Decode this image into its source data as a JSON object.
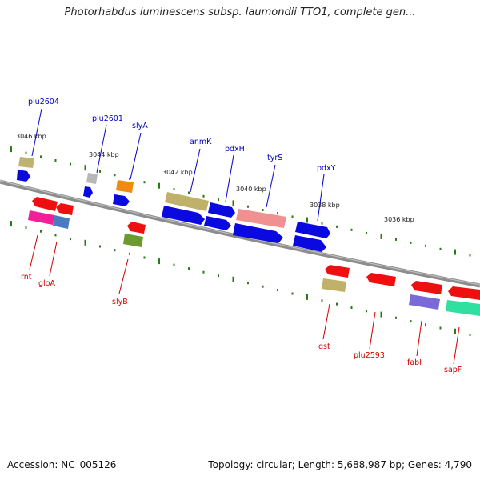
{
  "title": "Photorhabdus luminescens subsp. laumondii TTO1, complete gen...",
  "accession": "Accession: NC_005126",
  "genome_info": "Topology: circular; Length: 5,688,987 bp; Genes: 4,790",
  "colors": {
    "backbone": "#8c8c8c",
    "forward_label": "#0000c8",
    "reverse_label": "#d00000",
    "tick_mark": "#2a7a1a"
  },
  "scale_labels": [
    "3046 kbp",
    "3044 kbp",
    "3042 kbp",
    "3040 kbp",
    "3038 kbp",
    "3036 kbp"
  ],
  "forward_genes": [
    {
      "name": "plu2604"
    },
    {
      "name": "plu2601"
    },
    {
      "name": "slyA"
    },
    {
      "name": "anmK"
    },
    {
      "name": "pdxH"
    },
    {
      "name": "tyrS"
    },
    {
      "name": "pdxY"
    }
  ],
  "reverse_genes": [
    {
      "name": "rnt"
    },
    {
      "name": "gloA"
    },
    {
      "name": "slyB"
    },
    {
      "name": "gst"
    },
    {
      "name": "plu2593"
    },
    {
      "name": "fabI"
    },
    {
      "name": "sapF"
    }
  ]
}
